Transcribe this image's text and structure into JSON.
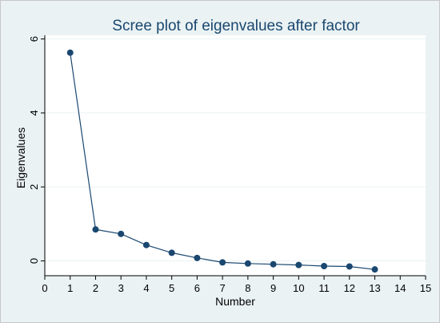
{
  "chart_data": {
    "type": "line",
    "title": "Scree plot of eigenvalues after factor",
    "xlabel": "Number",
    "ylabel": "Eigenvalues",
    "xlim": [
      0,
      15
    ],
    "ylim": [
      -0.4,
      6.1
    ],
    "xticks": [
      0,
      1,
      2,
      3,
      4,
      5,
      6,
      7,
      8,
      9,
      10,
      11,
      12,
      13,
      14,
      15
    ],
    "yticks": [
      0,
      2,
      4,
      6
    ],
    "grid": true,
    "colors": {
      "series": "#1a476f",
      "plot_bg": "#ffffff",
      "outer_bg": "#eaf2f3",
      "grid": "#eaf2f3"
    },
    "x": [
      1,
      2,
      3,
      4,
      5,
      6,
      7,
      8,
      9,
      10,
      11,
      12,
      13
    ],
    "series": [
      {
        "values": [
          5.63,
          0.85,
          0.73,
          0.43,
          0.22,
          0.08,
          -0.04,
          -0.07,
          -0.09,
          -0.11,
          -0.14,
          -0.15,
          -0.23
        ]
      }
    ]
  }
}
